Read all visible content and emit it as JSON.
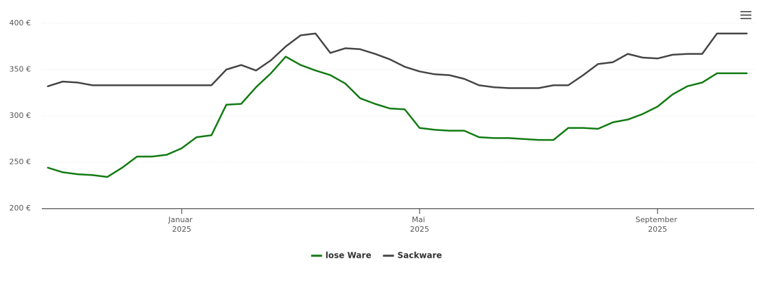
{
  "chart_data": {
    "type": "line",
    "categories": [
      null,
      null,
      null,
      null,
      null,
      null,
      null,
      null,
      null,
      "Januar 2025",
      null,
      null,
      null,
      null,
      null,
      null,
      null,
      null,
      null,
      null,
      null,
      null,
      null,
      null,
      null,
      "Mai 2025",
      null,
      null,
      null,
      null,
      null,
      null,
      null,
      null,
      null,
      null,
      null,
      null,
      null,
      null,
      null,
      "September 2025",
      null,
      null,
      null,
      null,
      null,
      null
    ],
    "series": [
      {
        "name": "lose Ware",
        "color": "#117a11",
        "values": [
          244,
          239,
          237,
          236,
          234,
          244,
          256,
          256,
          258,
          265,
          277,
          279,
          312,
          313,
          331,
          346,
          364,
          355,
          349,
          344,
          335,
          319,
          313,
          308,
          307,
          287,
          285,
          284,
          284,
          277,
          276,
          276,
          275,
          274,
          274,
          287,
          287,
          286,
          293,
          296,
          302,
          310,
          323,
          332,
          336,
          346,
          346,
          346
        ]
      },
      {
        "name": "Sackware",
        "color": "#444444",
        "values": [
          332,
          337,
          336,
          333,
          333,
          333,
          333,
          333,
          333,
          333,
          333,
          333,
          350,
          355,
          349,
          360,
          375,
          387,
          389,
          368,
          373,
          372,
          367,
          361,
          353,
          348,
          345,
          344,
          340,
          333,
          331,
          330,
          330,
          330,
          333,
          333,
          344,
          356,
          358,
          367,
          363,
          362,
          366,
          367,
          367,
          389,
          389,
          389
        ]
      }
    ],
    "ylim": [
      200,
      400
    ],
    "yticks": [
      {
        "value": 200,
        "label": "200 €"
      },
      {
        "value": 250,
        "label": "250 €"
      },
      {
        "value": 300,
        "label": "300 €"
      },
      {
        "value": 350,
        "label": "350 €"
      },
      {
        "value": 400,
        "label": "400 €"
      }
    ],
    "grid": true,
    "legend": "bottom"
  }
}
